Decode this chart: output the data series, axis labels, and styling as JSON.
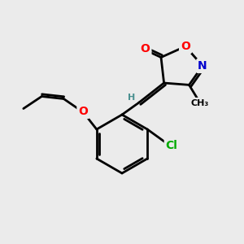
{
  "bg_color": "#ebebeb",
  "bond_color": "#000000",
  "bond_width": 2.0,
  "atom_colors": {
    "O": "#ff0000",
    "N": "#0000cd",
    "Cl": "#00aa00",
    "C": "#000000",
    "H": "#4a9090"
  },
  "font_size": 10
}
